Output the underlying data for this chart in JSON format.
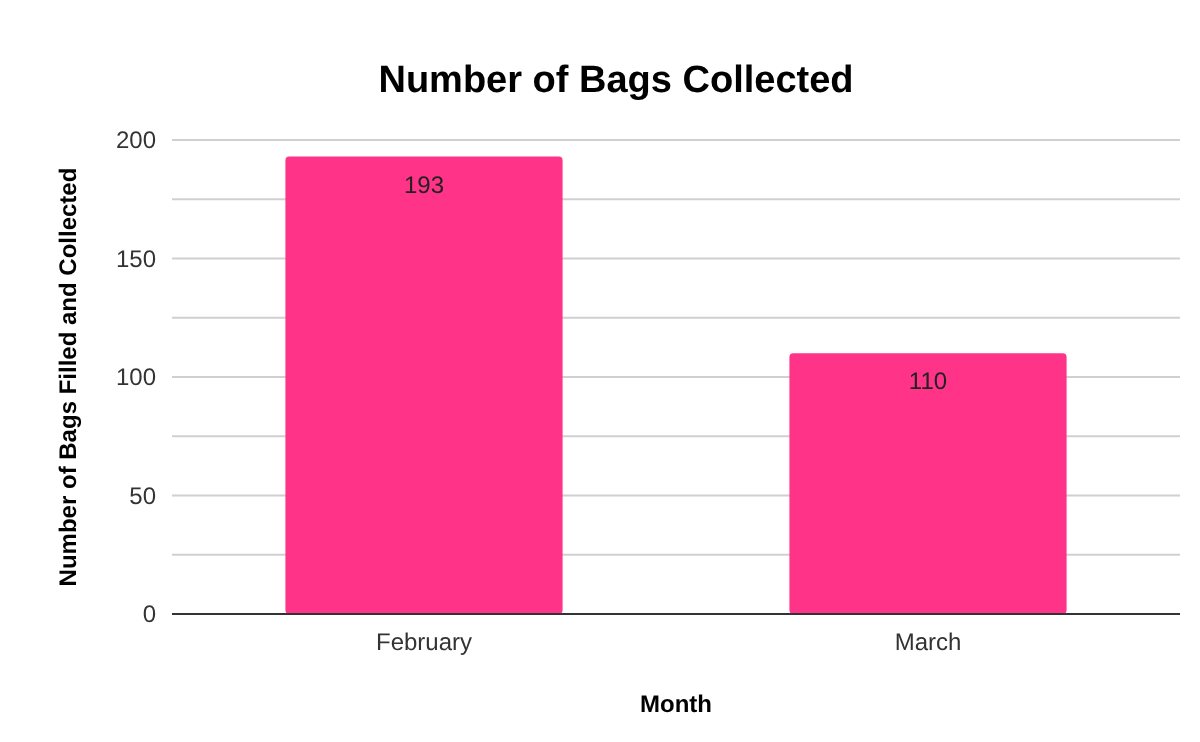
{
  "chart_data": {
    "type": "bar",
    "title": "Number of Bags Collected",
    "xlabel": "Month",
    "ylabel": "Number of Bags Filled and Collected",
    "categories": [
      "February",
      "March"
    ],
    "values": [
      193,
      110
    ],
    "color": "#ff3388",
    "ylim": [
      0,
      200
    ],
    "yticks": [
      0,
      {
        "value": 25,
        "label": null
      },
      50,
      {
        "value": 75,
        "label": null
      },
      100,
      {
        "value": 125,
        "label": null
      },
      150,
      {
        "value": 175,
        "label": null
      },
      200
    ],
    "grid": "y",
    "data_labels": true
  }
}
